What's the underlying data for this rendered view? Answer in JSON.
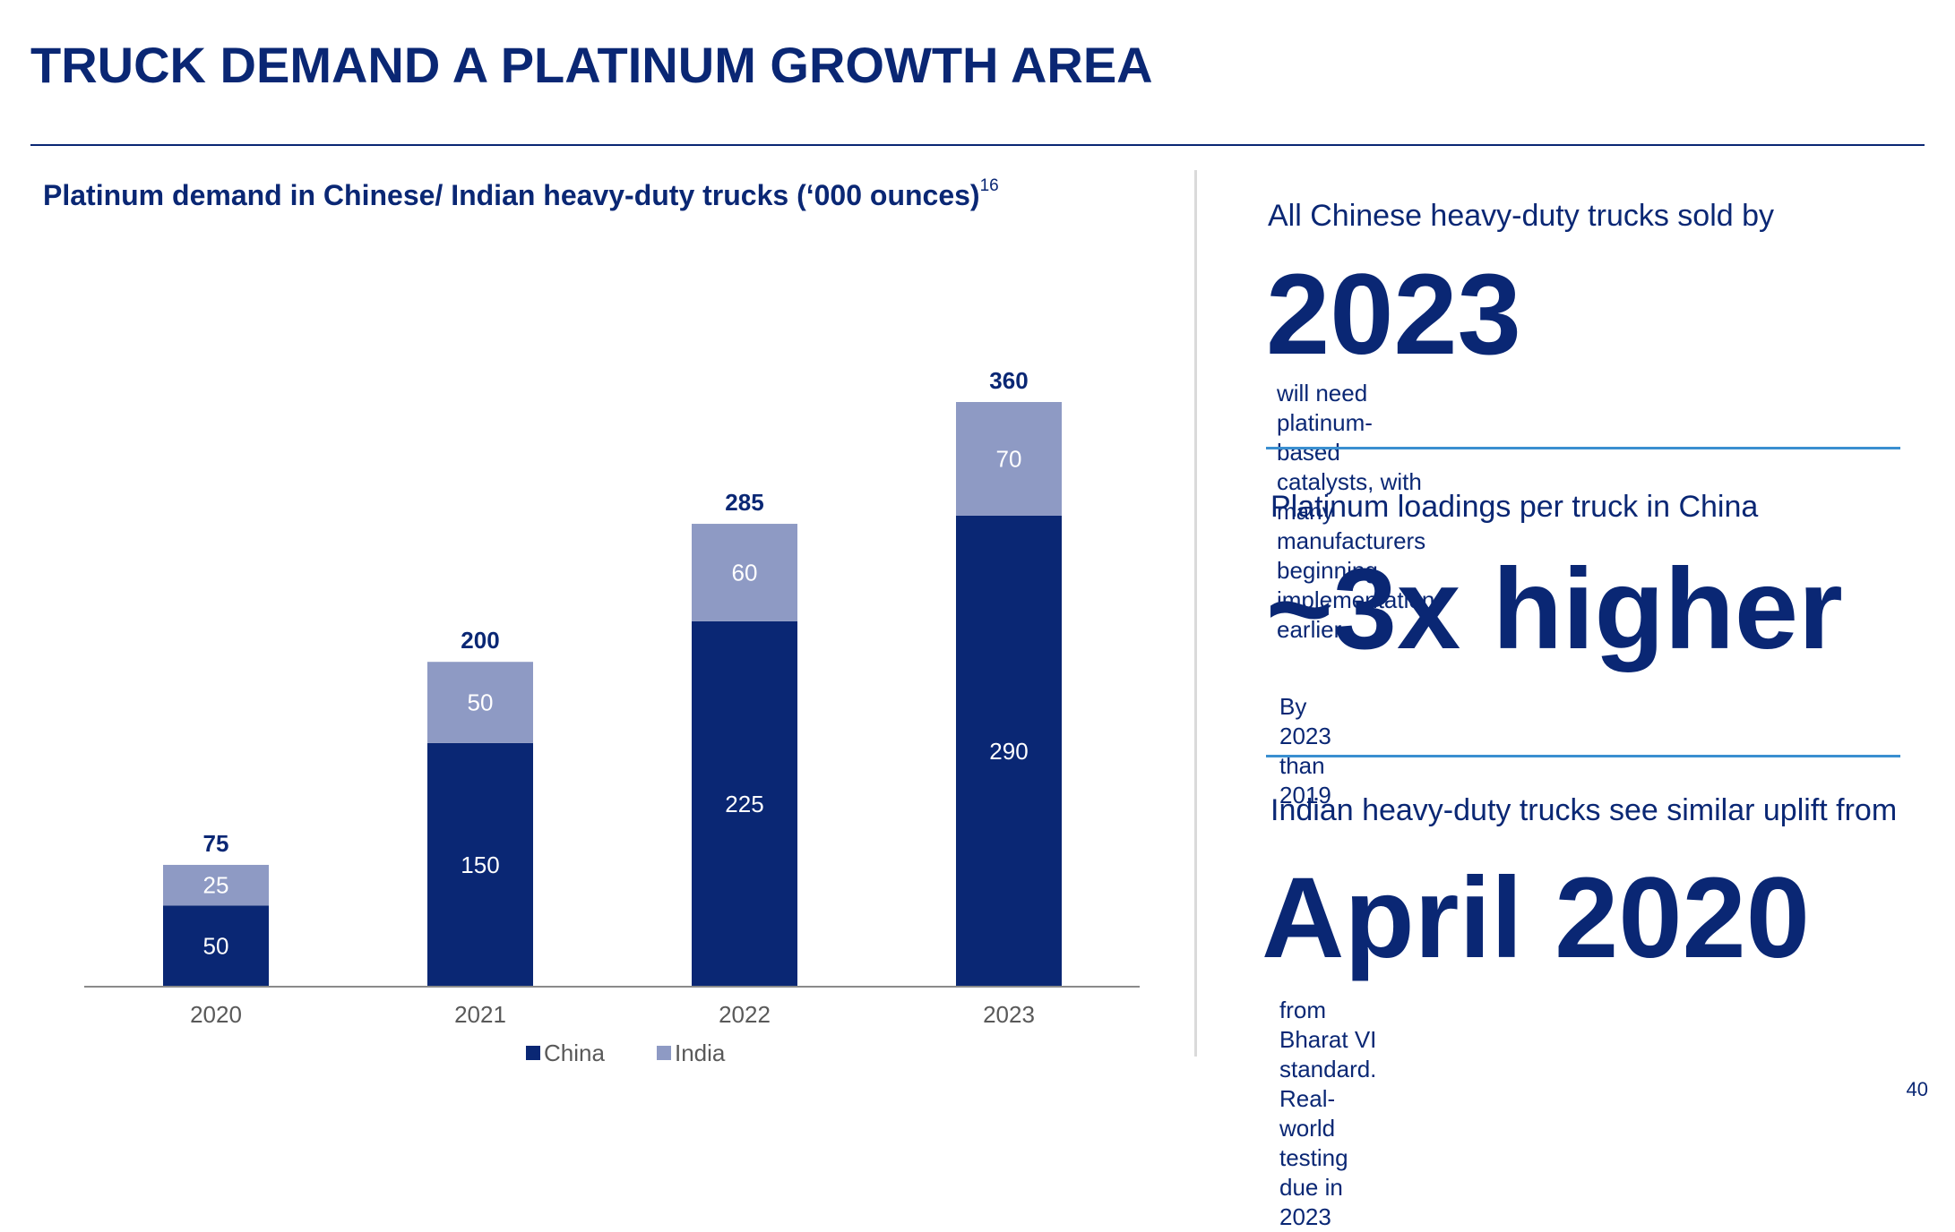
{
  "slide": {
    "title": "TRUCK DEMAND A PLATINUM GROWTH AREA",
    "page_number": "40"
  },
  "chart": {
    "title": "Platinum demand in Chinese/ Indian heavy-duty trucks (‘000 ounces)",
    "footnote": "16"
  },
  "chart_data": {
    "type": "bar",
    "stacked": true,
    "title": "Platinum demand in Chinese/ Indian heavy-duty trucks (‘000 ounces)",
    "xlabel": "",
    "ylabel": "",
    "categories": [
      "2020",
      "2021",
      "2022",
      "2023"
    ],
    "series": [
      {
        "name": "China",
        "values": [
          50,
          150,
          225,
          290
        ],
        "color": "#0a2774",
        "label_color": "#ffffff"
      },
      {
        "name": "India",
        "values": [
          25,
          50,
          60,
          70
        ],
        "color": "#8e9ac4",
        "label_color": "#ffffff"
      }
    ],
    "totals": [
      75,
      200,
      285,
      360
    ],
    "ylim": [
      0,
      360
    ],
    "grid": false,
    "legend": "bottom-center"
  },
  "panels": [
    {
      "lead": "All Chinese heavy-duty trucks sold by",
      "big": "2023",
      "note_lines": [
        "will need platinum-based catalysts, with many manufacturers",
        "beginning implementation earlier"
      ]
    },
    {
      "lead": "Platinum loadings per truck in China",
      "big": "~3x higher",
      "note_lines": [
        "By 2023 than 2019"
      ]
    },
    {
      "lead": "Indian heavy-duty trucks see similar uplift from",
      "big": "April 2020",
      "note_lines": [
        "from Bharat VI standard. Real-world testing due in 2023"
      ]
    }
  ],
  "colors": {
    "primary": "#0a2774",
    "secondary": "#8e9ac4",
    "rule_accent": "#3a8fd0",
    "axis_labels": "#595959"
  }
}
